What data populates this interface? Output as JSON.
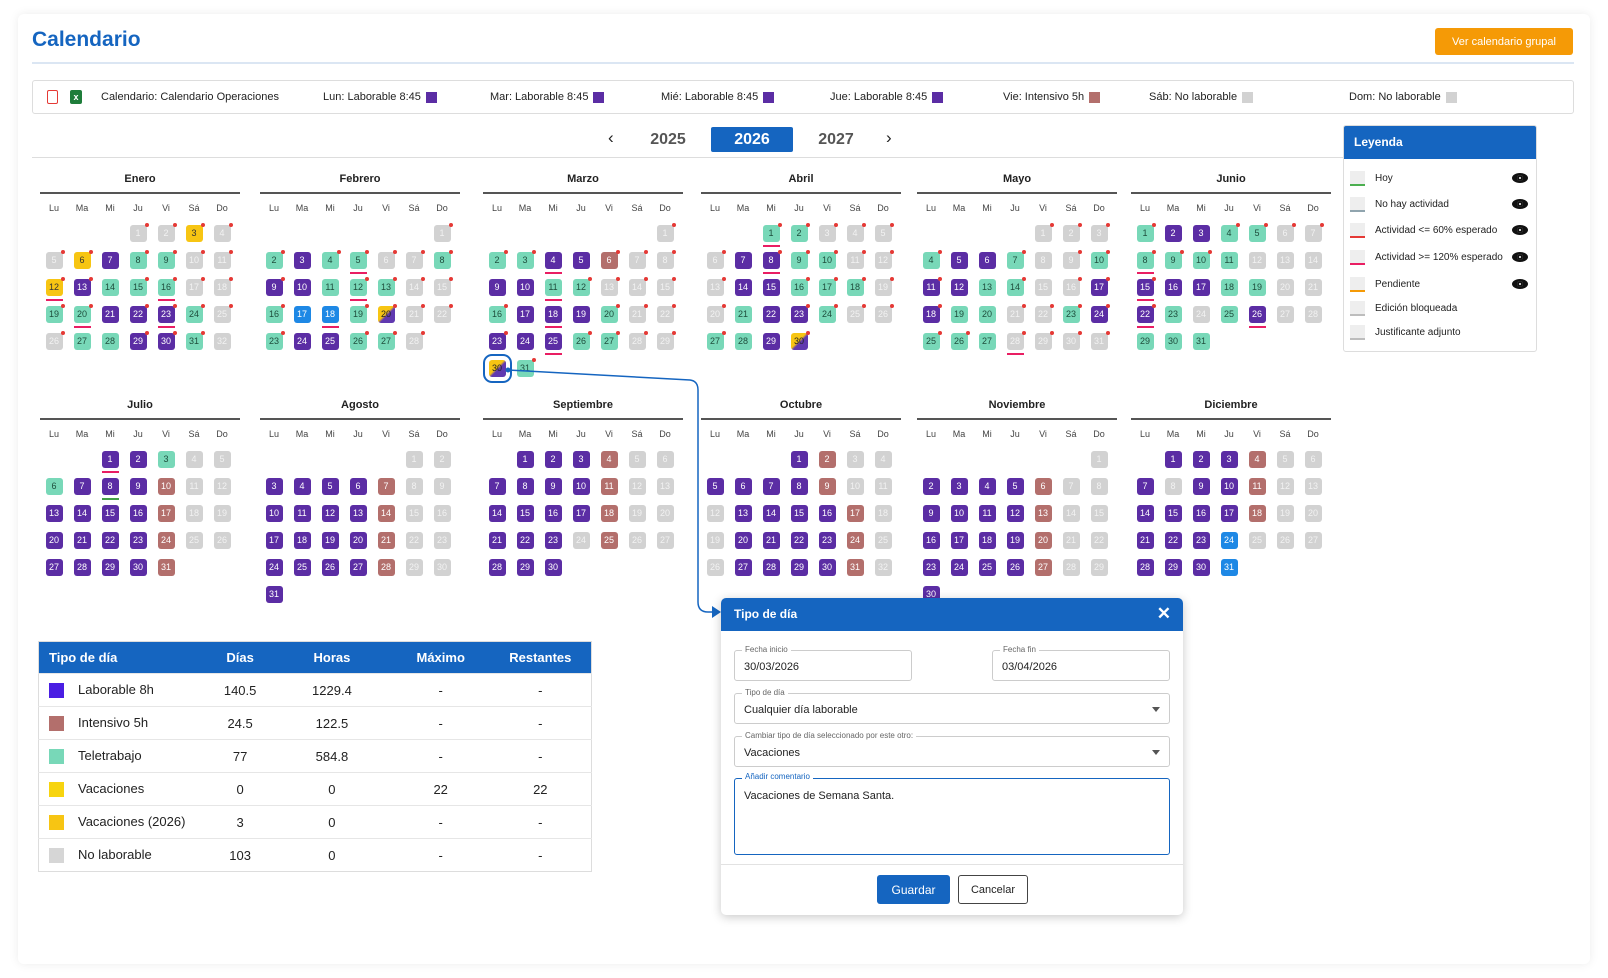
{
  "header": {
    "title": "Calendario",
    "group_button": "Ver calendario grupal"
  },
  "info_bar": {
    "pdf_icon": "pdf-file-icon",
    "excel_icon": "excel-file-icon",
    "excel_glyph": "x",
    "calendar": "Calendario: Calendario Operaciones",
    "weekdays": [
      {
        "text": "Lun: Laborable 8:45",
        "color": "#5b2da4"
      },
      {
        "text": "Mar: Laborable 8:45",
        "color": "#5b2da4"
      },
      {
        "text": "Mié: Laborable 8:45",
        "color": "#5b2da4"
      },
      {
        "text": "Jue: Laborable 8:45",
        "color": "#5b2da4"
      },
      {
        "text": "Vie: Intensivo 5h",
        "color": "#b36f6c"
      },
      {
        "text": "Sáb: No laborable",
        "color": "#d2d2d2"
      },
      {
        "text": "Dom: No laborable",
        "color": "#d2d2d2"
      }
    ]
  },
  "year_nav": {
    "prev": "‹",
    "next": "›",
    "years": [
      "2025",
      "2026",
      "2027"
    ],
    "selected": "2026"
  },
  "calendar": {
    "day_headers": [
      "Lu",
      "Ma",
      "Mi",
      "Ju",
      "Vi",
      "Sá",
      "Do"
    ],
    "months": [
      {
        "name": "Enero",
        "start": 3,
        "days": "nnvnnvwttnnvwtttnnttwwwtnnttwwtn",
        "marks": {
          "1": "r",
          "2": "r",
          "3": "r",
          "4": "r",
          "5": "r",
          "6": "r",
          "8": "r",
          "9": "r",
          "10": "r",
          "11": "r",
          "12": "r",
          "13": "r",
          "15": "r",
          "16": "r",
          "17": "r",
          "18": "r",
          "19": "r",
          "20": "r",
          "22": "r",
          "23": "r",
          "24": "r",
          "25": "r",
          "26": "r",
          "29": "r",
          "30": "r",
          "31": "r",
          "12u": "pu",
          "16u": "pu",
          "20u": "pu",
          "23u": "pu"
        }
      },
      {
        "name": "Febrero",
        "start": 6,
        "days": "ntwttnntwwtttnntbbtxnntwwttn",
        "marks": {
          "1": "r",
          "2": "r",
          "4": "r",
          "5": "r",
          "6": "r",
          "7": "r",
          "8": "r",
          "9": "r",
          "12": "r",
          "13": "r",
          "14": "r",
          "15": "r",
          "16": "r",
          "19": "r",
          "20": "r",
          "21": "r",
          "22": "r",
          "23": "r",
          "26": "r",
          "27": "r",
          "28": "r",
          "5u": "pu",
          "12u": "pu",
          "18u": "pu"
        }
      },
      {
        "name": "Marzo",
        "start": 6,
        "days": "nttwwinnwwttnnntwwwtnnwwwttnnxt",
        "marks": {
          "1": "r",
          "2": "r",
          "3": "r",
          "6": "r",
          "7": "r",
          "8": "r",
          "12": "r",
          "13": "r",
          "14": "r",
          "15": "r",
          "16": "r",
          "20": "r",
          "21": "r",
          "22": "r",
          "23": "r",
          "26": "r",
          "27": "r",
          "28": "r",
          "29": "r",
          "31": "r",
          "4u": "pu",
          "11u": "pu",
          "18u": "pu",
          "25u": "pu"
        },
        "selected": 30
      },
      {
        "name": "Abril",
        "start": 2,
        "days": "ttnnnnwwttnnnwwtttnntwwtnnttwx",
        "marks": {
          "1": "r",
          "2": "r",
          "3": "r",
          "4": "r",
          "5": "r",
          "6": "r",
          "8": "r",
          "9": "r",
          "10": "r",
          "11": "r",
          "12": "r",
          "13": "r",
          "16": "r",
          "17": "r",
          "18": "r",
          "19": "r",
          "20": "r",
          "23": "r",
          "24": "r",
          "25": "r",
          "26": "r",
          "27": "r",
          "30": "r",
          "1u": "pu",
          "8u": "pu"
        }
      },
      {
        "name": "Mayo",
        "start": 4,
        "days": "nnntwwtnntwwttnnwwttnntwtttnnnn",
        "marks": {
          "1": "r",
          "2": "r",
          "3": "r",
          "4": "r",
          "7": "r",
          "9": "r",
          "10": "r",
          "11": "r",
          "14": "r",
          "16": "r",
          "17": "r",
          "18": "r",
          "21": "r",
          "22": "r",
          "23": "r",
          "24": "r",
          "25": "r",
          "26": "r",
          "28": "r",
          "29": "r",
          "30": "r",
          "31": "r",
          "28u": "pu"
        }
      },
      {
        "name": "Junio",
        "start": 0,
        "days": "twwttnnttttnnnwwwttnnwtntwnnttt",
        "marks": {
          "1": "r",
          "4": "r",
          "5": "r",
          "6": "r",
          "7": "r",
          "8": "r",
          "9": "r",
          "10": "r",
          "15": "r",
          "22": "r",
          "8u": "pu",
          "15u": "pu",
          "22u": "pu",
          "26u": "pu"
        }
      },
      {
        "name": "Julio",
        "start": 2,
        "days": "wwtnntwwwinnwwwwinnwwwwinnwwwwi",
        "marks": {
          "1u": "pu",
          "8u": "gr"
        }
      },
      {
        "name": "Agosto",
        "start": 5,
        "days": "nnwwwwinnwwwwinnwwwwinnwwwwinnw",
        "marks": {}
      },
      {
        "name": "Septiembre",
        "start": 1,
        "days": "wwwinnwwwwinnwwwwinnwwwninnwww",
        "marks": {}
      },
      {
        "name": "Octubre",
        "start": 3,
        "days": "winnwwwwinnnwwwwinnwwwwinnwwwwin",
        "marks": {}
      },
      {
        "name": "Noviembre",
        "start": 6,
        "days": "nwwwwinnwwwwinnwwwwinnwwwwinnw",
        "marks": {}
      },
      {
        "name": "Diciembre",
        "start": 1,
        "days": "wwwinnwnwwinnwwwwinnwwwbnnnwwwb",
        "marks": {}
      }
    ]
  },
  "legend": {
    "title": "Leyenda",
    "items": [
      {
        "label": "Hoy",
        "bar": "#4caf50",
        "eye": true
      },
      {
        "label": "No hay actividad",
        "bar": "#90a4ae",
        "eye": true
      },
      {
        "label": "Actividad <= 60% esperado",
        "bar": "#e53935",
        "eye": true
      },
      {
        "label": "Actividad >= 120% esperado",
        "bar": "#e91e63",
        "eye": true
      },
      {
        "label": "Pendiente",
        "bar": "#f59a06",
        "eye": true
      },
      {
        "label": "Edición bloqueada",
        "bar": "#bdbdbd",
        "eye": false
      },
      {
        "label": "Justificante adjunto",
        "bar": "#bdbdbd",
        "eye": false
      }
    ]
  },
  "summary": {
    "headers": [
      "Tipo de día",
      "Días",
      "Horas",
      "Máximo",
      "Restantes"
    ],
    "rows": [
      {
        "color": "#4a1ee3",
        "name": "Laborable 8h",
        "dias": "140.5",
        "horas": "1229.4",
        "max": "-",
        "rest": "-"
      },
      {
        "color": "#b36f6c",
        "name": "Intensivo 5h",
        "dias": "24.5",
        "horas": "122.5",
        "max": "-",
        "rest": "-"
      },
      {
        "color": "#78d8b8",
        "name": "Teletrabajo",
        "dias": "77",
        "horas": "584.8",
        "max": "-",
        "rest": "-"
      },
      {
        "color": "#f7d40f",
        "name": "Vacaciones",
        "dias": "0",
        "horas": "0",
        "max": "22",
        "rest": "22"
      },
      {
        "color": "#f7c513",
        "name": "Vacaciones (2026)",
        "dias": "3",
        "horas": "0",
        "max": "-",
        "rest": "-"
      },
      {
        "color": "#d6d6d6",
        "name": "No laborable",
        "dias": "103",
        "horas": "0",
        "max": "-",
        "rest": "-"
      }
    ]
  },
  "dialog": {
    "title": "Tipo de día",
    "close": "✕",
    "start_label": "Fecha inicio",
    "start_value": "30/03/2026",
    "end_label": "Fecha fin",
    "end_value": "03/04/2026",
    "type_label": "Tipo de día",
    "type_value": "Cualquier día laborable",
    "change_label": "Cambiar tipo de día seleccionado por este otro:",
    "change_value": "Vacaciones",
    "comment_label": "Añadir comentario",
    "comment_value": "Vacaciones de Semana Santa.",
    "save": "Guardar",
    "cancel": "Cancelar"
  }
}
